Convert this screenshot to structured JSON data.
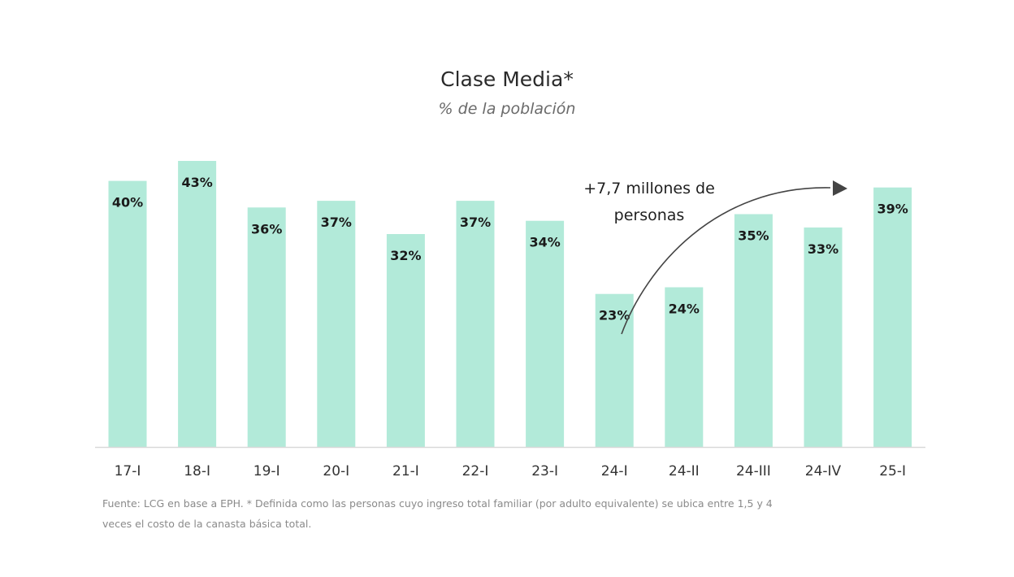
{
  "chart_data": {
    "type": "bar",
    "title": "Clase Media*",
    "subtitle": "% de la población",
    "categories": [
      "17-I",
      "18-I",
      "19-I",
      "20-I",
      "21-I",
      "22-I",
      "23-I",
      "24-I",
      "24-II",
      "24-III",
      "24-IV",
      "25-I"
    ],
    "values": [
      40,
      43,
      36,
      37,
      32,
      37,
      34,
      23,
      24,
      35,
      33,
      39
    ],
    "value_labels": [
      "40%",
      "43%",
      "36%",
      "37%",
      "32%",
      "37%",
      "34%",
      "23%",
      "24%",
      "35%",
      "33%",
      "39%"
    ],
    "unit": "%",
    "xlabel": "",
    "ylabel": "",
    "ylim": [
      0,
      43
    ],
    "grid": false,
    "legend": "none",
    "bar_color": "#b2ead9",
    "annotation": {
      "lines": [
        "+7,7 millones de",
        "personas"
      ],
      "from_category": "24-I",
      "to_category": "25-I"
    }
  },
  "footnote": {
    "lines": [
      "Fuente: LCG en base a EPH. * Definida como las personas cuyo ingreso total familiar (por adulto equivalente) se ubica entre 1,5 y 4",
      "veces el costo de la canasta básica total."
    ]
  }
}
